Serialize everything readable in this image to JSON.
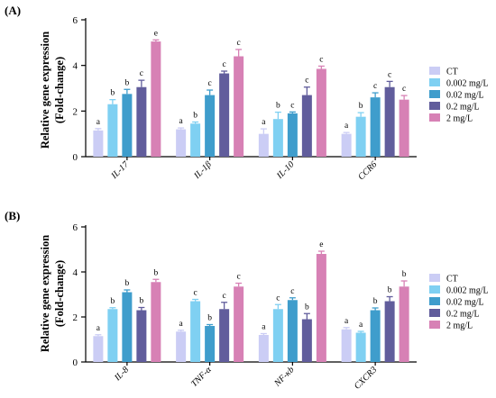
{
  "figure": {
    "series_colors": [
      "#cbcdf5",
      "#7fd0f2",
      "#3f9dcc",
      "#615d9c",
      "#d781b5"
    ]
  },
  "chart_data": [
    {
      "type": "bar",
      "panel_label": "(A)",
      "ylabel_line1": "Relative gene expression",
      "ylabel_line2": "(Fold-change)",
      "ylim": [
        0,
        6
      ],
      "yticks": [
        0,
        2,
        4,
        6
      ],
      "categories": [
        "IL-17",
        "IL-1β",
        "IL-10",
        "CCR6"
      ],
      "legend": {
        "position": "right"
      },
      "series": [
        {
          "name": "CT",
          "values": [
            1.15,
            1.2,
            1.0,
            1.0
          ],
          "errors": [
            0.08,
            0.06,
            0.22,
            0.06
          ],
          "labels": [
            "a",
            "a",
            "a",
            "a"
          ]
        },
        {
          "name": "0.002 mg/L",
          "values": [
            2.3,
            1.45,
            1.65,
            1.75
          ],
          "errors": [
            0.2,
            0.07,
            0.3,
            0.18
          ],
          "labels": [
            "b",
            "b",
            "b",
            "b"
          ]
        },
        {
          "name": "0.02 mg/L",
          "values": [
            2.75,
            2.7,
            1.9,
            2.6
          ],
          "errors": [
            0.2,
            0.22,
            0.06,
            0.2
          ],
          "labels": [
            "b",
            "c",
            "c",
            "c"
          ]
        },
        {
          "name": "0.2 mg/L",
          "values": [
            3.05,
            3.65,
            2.7,
            3.05
          ],
          "errors": [
            0.3,
            0.1,
            0.35,
            0.25
          ],
          "labels": [
            "c",
            "c",
            "c",
            "c"
          ]
        },
        {
          "name": "2 mg/L",
          "values": [
            5.05,
            4.4,
            3.85,
            2.5
          ],
          "errors": [
            0.07,
            0.3,
            0.12,
            0.18
          ],
          "labels": [
            "e",
            "c",
            "c",
            "c"
          ]
        }
      ]
    },
    {
      "type": "bar",
      "panel_label": "(B)",
      "ylabel_line1": "Relative gene expression",
      "ylabel_line2": "(Fold-change)",
      "ylim": [
        0,
        6
      ],
      "yticks": [
        0,
        2,
        4,
        6
      ],
      "categories": [
        "IL-8",
        "TNF-α",
        "NF-κb",
        "CXCR3"
      ],
      "legend": {
        "position": "right"
      },
      "series": [
        {
          "name": "CT",
          "values": [
            1.15,
            1.35,
            1.2,
            1.45
          ],
          "errors": [
            0.06,
            0.06,
            0.06,
            0.08
          ],
          "labels": [
            "a",
            "a",
            "a",
            "a"
          ]
        },
        {
          "name": "0.002 mg/L",
          "values": [
            2.35,
            2.7,
            2.35,
            1.3
          ],
          "errors": [
            0.06,
            0.08,
            0.2,
            0.06
          ],
          "labels": [
            "b",
            "c",
            "c",
            "a"
          ]
        },
        {
          "name": "0.02 mg/L",
          "values": [
            3.1,
            1.6,
            2.75,
            2.3
          ],
          "errors": [
            0.1,
            0.06,
            0.1,
            0.1
          ],
          "labels": [
            "b",
            "b",
            "c",
            "b"
          ]
        },
        {
          "name": "0.2 mg/L",
          "values": [
            2.3,
            2.35,
            1.9,
            2.7
          ],
          "errors": [
            0.12,
            0.3,
            0.25,
            0.2
          ],
          "labels": [
            "b",
            "c",
            "b",
            "b"
          ]
        },
        {
          "name": "2 mg/L",
          "values": [
            3.55,
            3.35,
            4.8,
            3.35
          ],
          "errors": [
            0.12,
            0.15,
            0.12,
            0.25
          ],
          "labels": [
            "b",
            "c",
            "e",
            "b"
          ]
        }
      ]
    }
  ]
}
